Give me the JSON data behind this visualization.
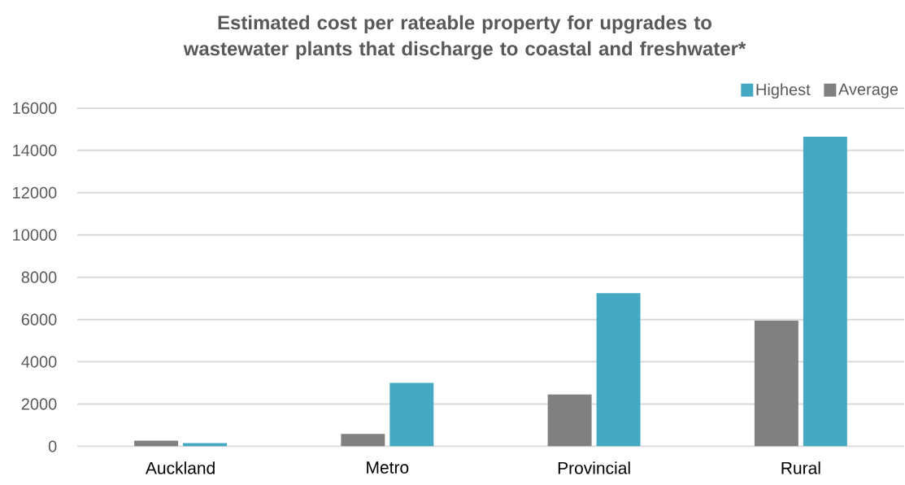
{
  "chart_data": {
    "type": "bar",
    "title": "Estimated cost per rateable property for upgrades to wastewater plants that discharge to coastal and freshwater*",
    "categories": [
      "Auckland",
      "Metro",
      "Provincial",
      "Rural"
    ],
    "series": [
      {
        "name": "Average",
        "color": "#808080",
        "values": [
          270,
          590,
          2450,
          5950
        ]
      },
      {
        "name": "Highest",
        "color": "#46a9c4",
        "values": [
          150,
          3000,
          7250,
          14650
        ]
      }
    ],
    "ylim": [
      0,
      16000
    ],
    "yticks": [
      0,
      2000,
      4000,
      6000,
      8000,
      10000,
      12000,
      14000,
      16000
    ],
    "grid": "y",
    "legend": "top right"
  }
}
